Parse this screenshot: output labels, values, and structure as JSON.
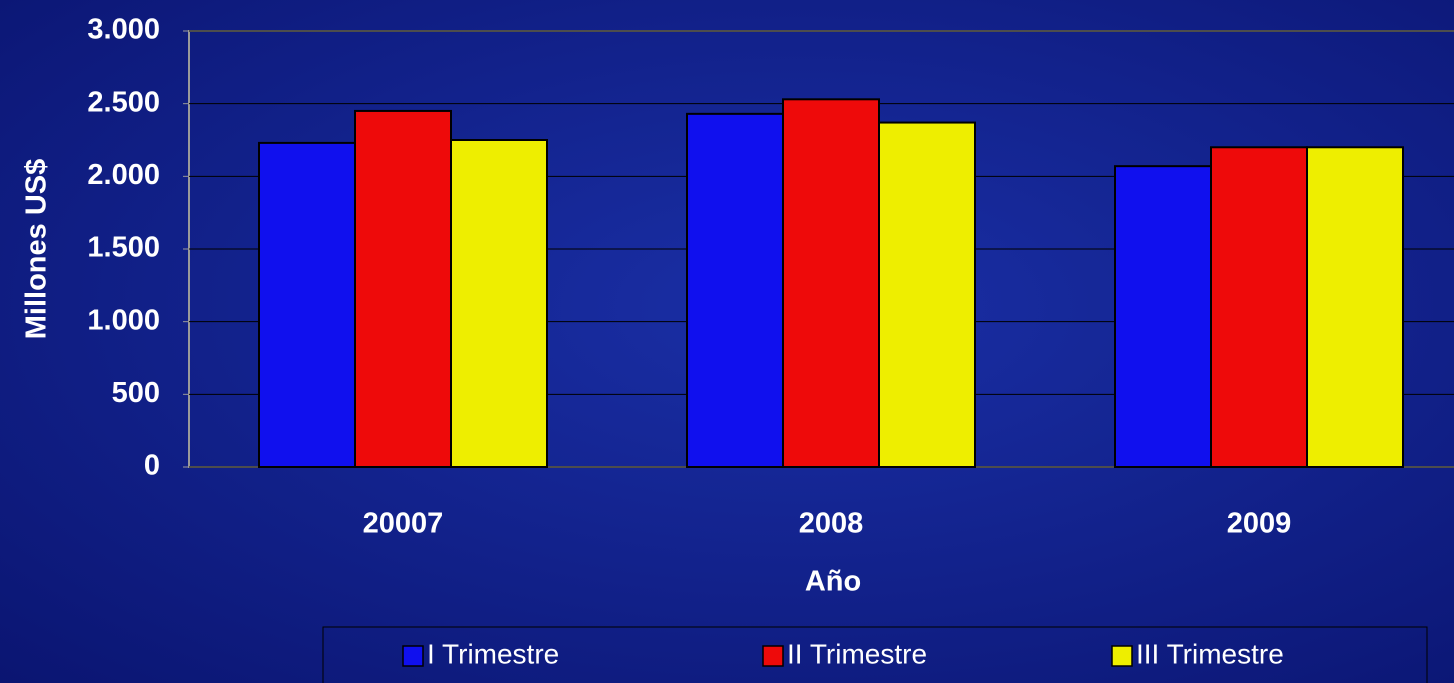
{
  "chart_data": {
    "type": "bar",
    "x_label": "Año",
    "y_label": "Millones US$",
    "categories": [
      "20007",
      "2008",
      "2009"
    ],
    "series": [
      {
        "name": "I Trimestre",
        "color": "#1010ee",
        "values": [
          2230,
          2430,
          2070
        ]
      },
      {
        "name": "II Trimestre",
        "color": "#ee0a0a",
        "values": [
          2450,
          2530,
          2200
        ]
      },
      {
        "name": "III Trimestre",
        "color": "#eeee00",
        "values": [
          2250,
          2370,
          2200
        ]
      }
    ],
    "ylim": [
      0,
      3000
    ],
    "yticks": [
      0,
      500,
      {
        "value": 1000,
        "label": "1.000"
      },
      {
        "value": 1500,
        "label": "1.500"
      },
      {
        "value": 2000,
        "label": "2.000"
      },
      {
        "value": 2500,
        "label": "2.500"
      },
      {
        "value": 3000,
        "label": "3.000"
      }
    ],
    "grid": true,
    "legend": "bottom"
  }
}
